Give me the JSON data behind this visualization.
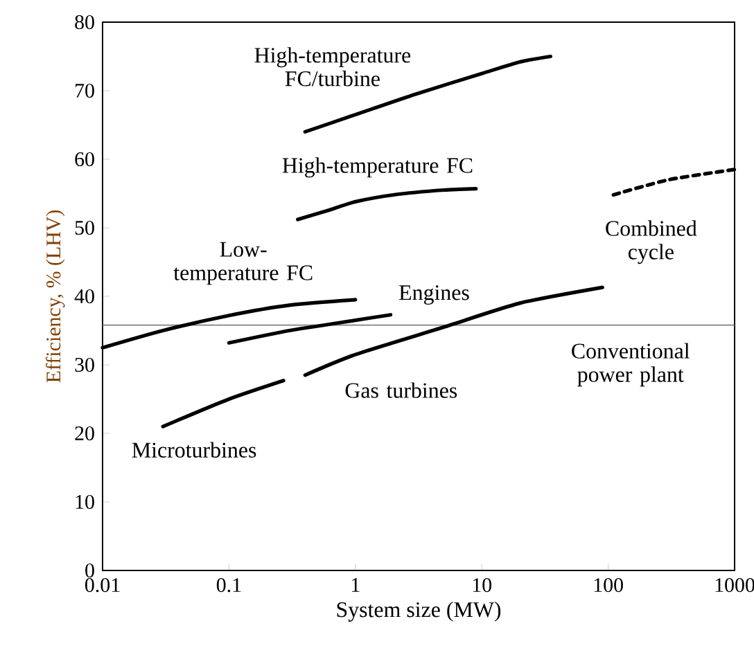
{
  "chart_data": {
    "type": "line",
    "xlabel": "System size (MW)",
    "ylabel": "Efficiency, % (LHV)",
    "log": "x",
    "xlim": [
      0.01,
      1000
    ],
    "ylim": [
      0,
      80
    ],
    "xticks": [
      0.01,
      0.1,
      1,
      10,
      100,
      1000
    ],
    "yticks": [
      0,
      10,
      20,
      30,
      40,
      50,
      60,
      70,
      80
    ],
    "grid": false,
    "marker": "none",
    "series": [
      {
        "name": "High-temperature FC/turbine",
        "color": "#000000",
        "line_style": "solid",
        "x": [
          0.4,
          1,
          3,
          10,
          20,
          35
        ],
        "values": [
          64,
          66.5,
          69.5,
          72.5,
          74.2,
          75
        ]
      },
      {
        "name": "High-temperature FC",
        "color": "#000000",
        "line_style": "solid",
        "x": [
          0.35,
          0.6,
          1,
          2,
          5,
          9
        ],
        "values": [
          51.2,
          52.5,
          53.8,
          54.8,
          55.5,
          55.7
        ]
      },
      {
        "name": "Low-temperature FC",
        "color": "#000000",
        "line_style": "solid",
        "x": [
          0.01,
          0.03,
          0.1,
          0.3,
          1
        ],
        "values": [
          32.5,
          35,
          37.2,
          38.7,
          39.5
        ]
      },
      {
        "name": "Engines",
        "color": "#000000",
        "line_style": "solid",
        "x": [
          0.1,
          0.3,
          1,
          1.9
        ],
        "values": [
          33.2,
          35,
          36.5,
          37.3
        ]
      },
      {
        "name": "Microturbines",
        "color": "#000000",
        "line_style": "solid",
        "x": [
          0.03,
          0.1,
          0.27
        ],
        "values": [
          21,
          25,
          27.7
        ]
      },
      {
        "name": "Gas turbines",
        "color": "#000000",
        "line_style": "solid",
        "x": [
          0.4,
          1,
          5,
          20,
          90
        ],
        "values": [
          28.5,
          31.5,
          35.5,
          39,
          41.3
        ]
      },
      {
        "name": "Combined cycle",
        "color": "#000000",
        "line_style": "dashed",
        "x": [
          110,
          300,
          1000
        ],
        "values": [
          54.8,
          57,
          58.5
        ]
      }
    ],
    "ref_lines": [
      {
        "axis": "y",
        "value": 35.8,
        "label": "Conventional power plant",
        "color": "#808080"
      }
    ]
  }
}
